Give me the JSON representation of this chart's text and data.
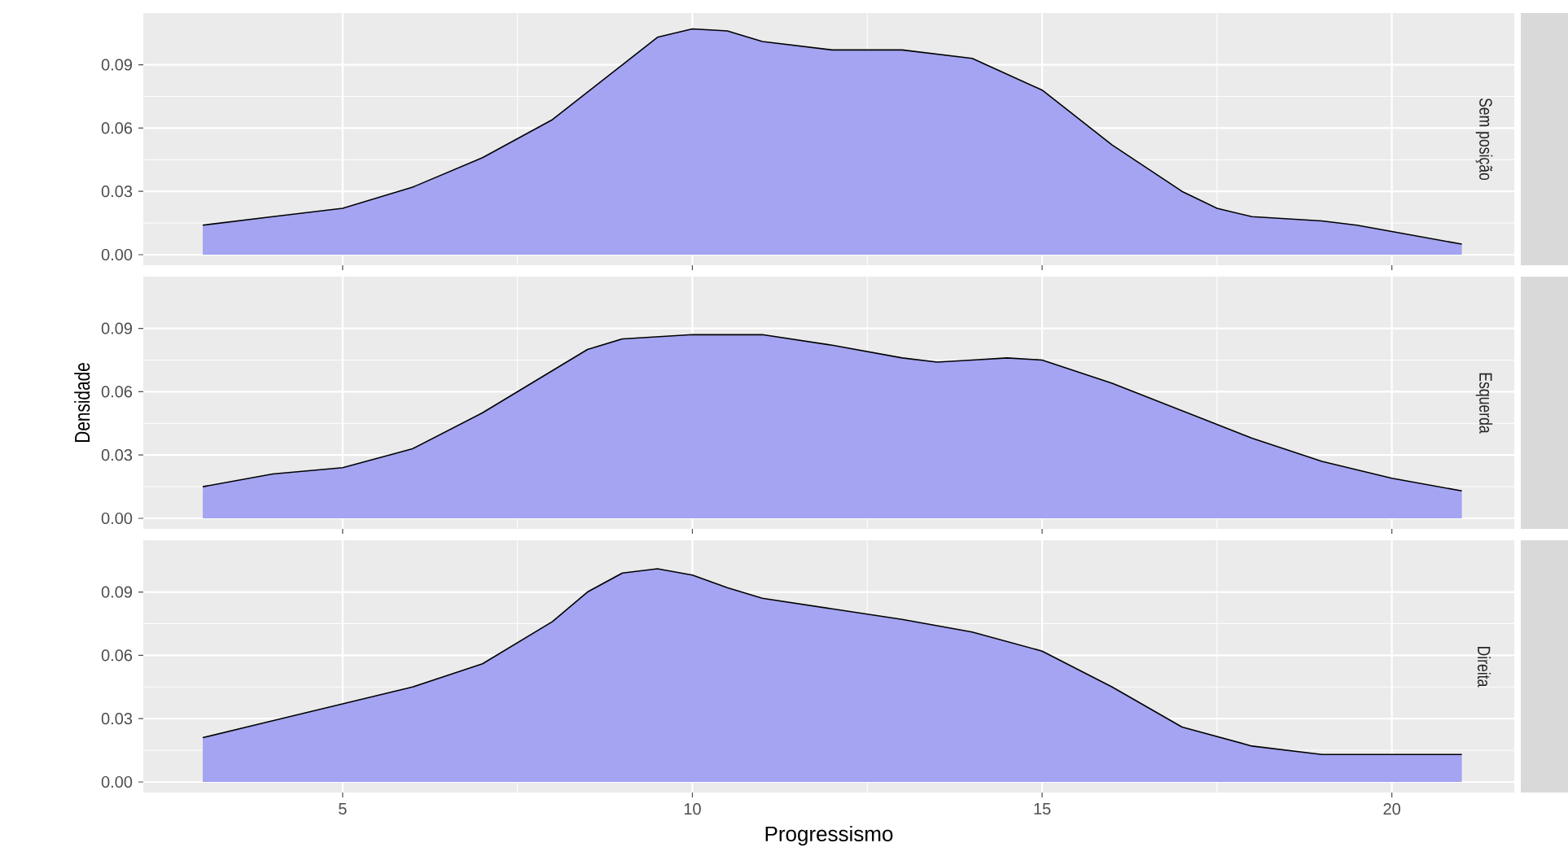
{
  "chart_data": [
    {
      "type": "area",
      "title": "Sem posição",
      "x": [
        3,
        4,
        5,
        6,
        7,
        8,
        9,
        9.5,
        10,
        10.5,
        11,
        12,
        13,
        14,
        15,
        16,
        17,
        17.5,
        18,
        19,
        19.5,
        20,
        21
      ],
      "series": [
        {
          "color": "#a4a4f2",
          "values": [
            0.014,
            0.018,
            0.022,
            0.032,
            0.046,
            0.064,
            0.09,
            0.103,
            0.107,
            0.106,
            0.101,
            0.097,
            0.097,
            0.093,
            0.078,
            0.052,
            0.03,
            0.022,
            0.018,
            0.016,
            0.014,
            0.011,
            0.005
          ]
        }
      ],
      "xlim": [
        2.15,
        21.75
      ],
      "ylim": [
        -0.005,
        0.1145
      ],
      "xticks": [
        5,
        10,
        15,
        20
      ],
      "yticks": [
        {
          "value": 0,
          "label": "0.00"
        },
        {
          "value": 0.03,
          "label": "0.03"
        },
        {
          "value": 0.06,
          "label": "0.06"
        },
        {
          "value": 0.09,
          "label": "0.09"
        }
      ],
      "grid": true,
      "tick_labels": "y"
    },
    {
      "type": "area",
      "title": "Esquerda",
      "ylabel": "Densidade",
      "x": [
        3,
        4,
        5,
        6,
        7,
        8,
        8.5,
        9,
        10,
        11,
        12,
        13,
        13.5,
        14,
        14.5,
        15,
        16,
        17,
        18,
        19,
        20,
        21
      ],
      "series": [
        {
          "color": "#a4a4f2",
          "values": [
            0.015,
            0.021,
            0.024,
            0.033,
            0.05,
            0.07,
            0.08,
            0.085,
            0.087,
            0.087,
            0.082,
            0.076,
            0.074,
            0.075,
            0.076,
            0.075,
            0.064,
            0.051,
            0.038,
            0.027,
            0.019,
            0.013
          ]
        }
      ],
      "xlim": [
        2.15,
        21.75
      ],
      "ylim": [
        -0.005,
        0.1145
      ],
      "xticks": [
        5,
        10,
        15,
        20
      ],
      "yticks": [
        {
          "value": 0,
          "label": "0.00"
        },
        {
          "value": 0.03,
          "label": "0.03"
        },
        {
          "value": 0.06,
          "label": "0.06"
        },
        {
          "value": 0.09,
          "label": "0.09"
        }
      ],
      "grid": true,
      "tick_labels": "y"
    },
    {
      "type": "area",
      "title": "Direita",
      "xlabel": "Progressismo",
      "x": [
        3,
        4,
        5,
        6,
        7,
        8,
        8.5,
        9,
        9.5,
        10,
        10.5,
        11,
        12,
        13,
        14,
        15,
        16,
        17,
        18,
        19,
        20,
        21
      ],
      "series": [
        {
          "color": "#a4a4f2",
          "values": [
            0.021,
            0.029,
            0.037,
            0.045,
            0.056,
            0.076,
            0.09,
            0.099,
            0.101,
            0.098,
            0.092,
            0.087,
            0.082,
            0.077,
            0.071,
            0.062,
            0.045,
            0.026,
            0.017,
            0.013,
            0.013,
            0.013
          ]
        }
      ],
      "xlim": [
        2.15,
        21.75
      ],
      "ylim": [
        -0.005,
        0.1145
      ],
      "xticks": [
        5,
        10,
        15,
        20
      ],
      "yticks": [
        {
          "value": 0,
          "label": "0.00"
        },
        {
          "value": 0.03,
          "label": "0.03"
        },
        {
          "value": 0.06,
          "label": "0.06"
        },
        {
          "value": 0.09,
          "label": "0.09"
        }
      ],
      "grid": true
    }
  ]
}
